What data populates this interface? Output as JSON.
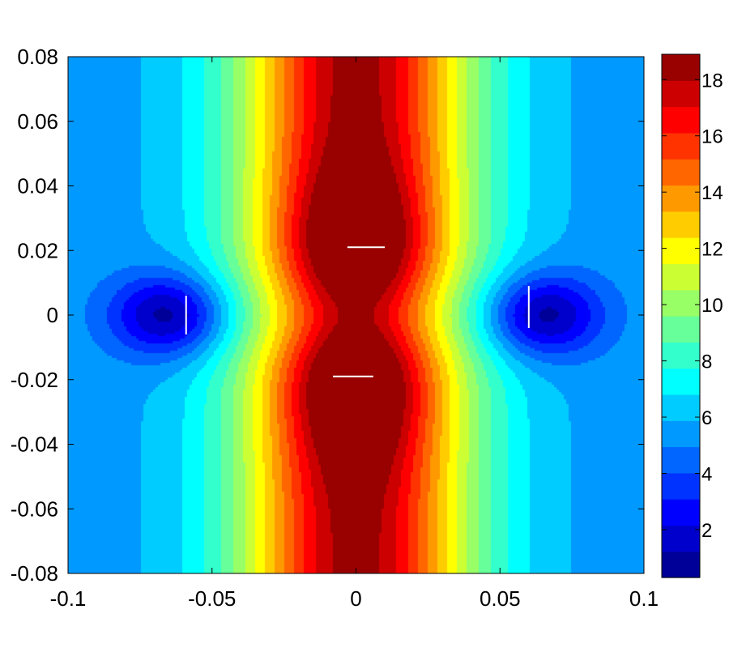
{
  "chart_data": {
    "type": "heatmap",
    "title": "",
    "xlabel": "",
    "ylabel": "",
    "xlim": [
      -0.1,
      0.1
    ],
    "ylim": [
      -0.08,
      0.08
    ],
    "x_ticks": [
      "-0.1",
      "-0.05",
      "0",
      "0.05",
      "0.1"
    ],
    "x_tick_values": [
      -0.1,
      -0.05,
      0,
      0.05,
      0.1
    ],
    "y_ticks": [
      "0.08",
      "0.06",
      "0.04",
      "0.02",
      "0",
      "-0.02",
      "-0.04",
      "-0.06",
      "-0.08"
    ],
    "y_tick_values": [
      0.08,
      0.06,
      0.04,
      0.02,
      0,
      -0.02,
      -0.04,
      -0.06,
      -0.08
    ],
    "colorbar": {
      "range": [
        0.3,
        18.9
      ],
      "ticks": [
        "18",
        "16",
        "14",
        "12",
        "10",
        "8",
        "6",
        "4",
        "2"
      ],
      "tick_values": [
        18,
        16,
        14,
        12,
        10,
        8,
        6,
        4,
        2
      ],
      "colormap": "jet",
      "levels": 20
    },
    "field_features": {
      "maxima": [
        {
          "x": 0.0,
          "y": 0.022,
          "value": 18.9
        },
        {
          "x": 0.0,
          "y": -0.022,
          "value": 18.9
        }
      ],
      "minima": [
        {
          "x": -0.065,
          "y": 0.0,
          "value": 0.5
        },
        {
          "x": 0.065,
          "y": 0.0,
          "value": 0.5
        }
      ],
      "edge_value_left_right": 5.5
    },
    "markers": [
      {
        "orientation": "horizontal",
        "x1": -0.003,
        "x2": 0.01,
        "y": 0.021
      },
      {
        "orientation": "horizontal",
        "x1": -0.008,
        "x2": 0.006,
        "y": -0.019
      },
      {
        "orientation": "vertical",
        "x": -0.059,
        "y1": 0.006,
        "y2": -0.006
      },
      {
        "orientation": "vertical",
        "x": 0.06,
        "y1": 0.009,
        "y2": -0.004
      }
    ],
    "grid": false,
    "legend": "colorbar-right"
  }
}
